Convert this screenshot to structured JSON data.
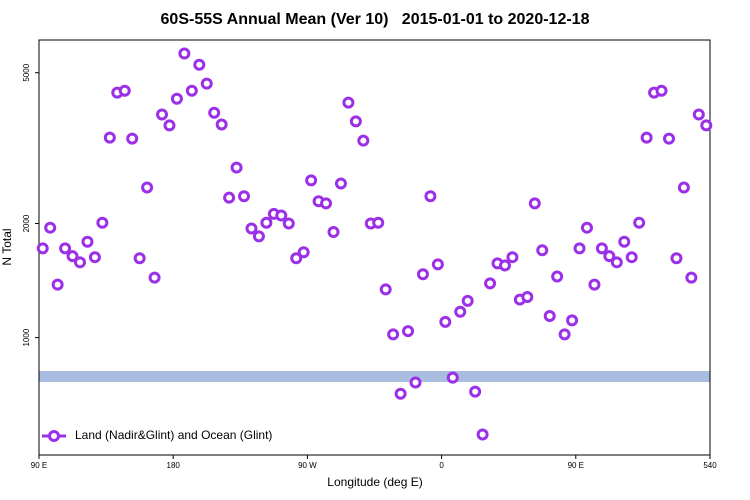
{
  "chart_data": {
    "type": "scatter",
    "title": "60S-55S Annual Mean (Ver 10)   2015-01-01 to 2020-12-18",
    "x_label": "Longitude (deg E)",
    "y_label": "N Total",
    "log_y": true,
    "legend": "bottom-left",
    "xlim": [
      90,
      540
    ],
    "xticks": [
      {
        "value": 90,
        "label": "90 E"
      },
      180,
      {
        "value": 270,
        "label": "90 W"
      },
      {
        "value": 360,
        "label": "0"
      },
      {
        "value": 450,
        "label": "90 E"
      },
      540
    ],
    "ylim": [
      490,
      6100
    ],
    "yticks": [
      1000,
      2000,
      5000
    ],
    "x": [
      92.5,
      97.5,
      102.5,
      107.5,
      112.5,
      117.5,
      122.5,
      127.5,
      132.5,
      137.5,
      142.5,
      147.5,
      152.5,
      157.5,
      162.5,
      167.5,
      172.5,
      177.5,
      182.5,
      187.5,
      192.5,
      197.5,
      202.5,
      207.5,
      212.5,
      217.5,
      222.5,
      227.5,
      232.5,
      237.5,
      242.5,
      247.5,
      252.5,
      257.5,
      262.5,
      267.5,
      272.5,
      277.5,
      282.5,
      287.5,
      292.5,
      297.5,
      302.5,
      307.5,
      312.5,
      317.5,
      322.5,
      327.5,
      332.5,
      337.5,
      342.5,
      347.5,
      352.5,
      357.5,
      362.5,
      367.5,
      372.5,
      377.5,
      382.5,
      387.5,
      392.5,
      397.5,
      402.5,
      407.5,
      412.5,
      417.5,
      422.5,
      427.5,
      432.5,
      437.5,
      442.5,
      447.5,
      452.5,
      457.5,
      462.5,
      467.5,
      472.5,
      477.5,
      482.5,
      487.5,
      492.5,
      497.5,
      502.5,
      507.5,
      512.5,
      517.5,
      522.5,
      527.5,
      532.5,
      537.5
    ],
    "series": [
      {
        "name": "Land (Nadir&Glint) and Ocean (Glint)",
        "color": "#9b30e8",
        "values": [
          1720,
          1950,
          1380,
          1720,
          1640,
          1580,
          1790,
          1630,
          2010,
          3370,
          4430,
          4480,
          3350,
          1620,
          2490,
          1440,
          3880,
          3630,
          4270,
          5620,
          4480,
          5250,
          4680,
          3920,
          3650,
          2340,
          2810,
          2360,
          1940,
          1850,
          2010,
          2120,
          2100,
          2000,
          1620,
          1680,
          2600,
          2290,
          2260,
          1900,
          2550,
          4170,
          3720,
          3310,
          2000,
          2010,
          1340,
          1020,
          711,
          1040,
          761,
          1470,
          2360,
          1560,
          1100,
          784,
          1170,
          1250,
          720,
          555,
          1390,
          1570,
          1550,
          1630,
          1260,
          1280,
          2260,
          1700,
          1140,
          1450,
          1020,
          1110,
          1720,
          1950,
          1380,
          1720,
          1640,
          1580,
          1790,
          1630,
          2010,
          3370,
          4430,
          4480,
          3350,
          1620,
          2490,
          1440,
          3880,
          3630
        ]
      }
    ]
  }
}
